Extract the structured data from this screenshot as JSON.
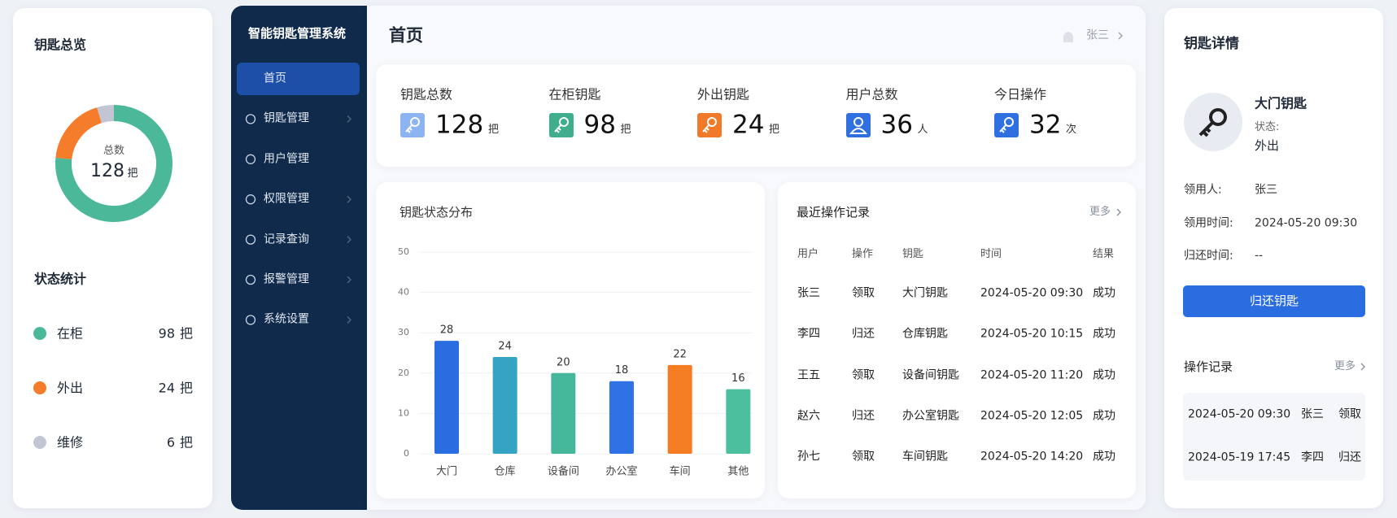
{
  "overview": {
    "title": "钥匙总览",
    "center_label": "总数",
    "total": 128,
    "unit": "把"
  },
  "status": {
    "title": "状态统计",
    "items": [
      {
        "label": "在柜",
        "value": 98,
        "unit": "把",
        "color": "#4cb89a"
      },
      {
        "label": "外出",
        "value": 24,
        "unit": "把",
        "color": "#f47c2a"
      },
      {
        "label": "维修",
        "value": 6,
        "unit": "把",
        "color": "#c2c6d3"
      }
    ]
  },
  "sidebar": {
    "title": "智能钥匙管理系统",
    "menu": [
      {
        "label": "首页",
        "active": true,
        "submenu": false
      },
      {
        "label": "钥匙管理",
        "active": false,
        "submenu": true
      },
      {
        "label": "用户管理",
        "active": false,
        "submenu": false
      },
      {
        "label": "权限管理",
        "active": false,
        "submenu": true
      },
      {
        "label": "记录查询",
        "active": false,
        "submenu": true
      },
      {
        "label": "报警管理",
        "active": false,
        "submenu": true
      },
      {
        "label": "系统设置",
        "active": false,
        "submenu": true
      }
    ]
  },
  "header": {
    "title": "首页",
    "user": "张三"
  },
  "stats": [
    {
      "label": "钥匙总数",
      "value": 128,
      "unit": "把",
      "color": "#8db4f2",
      "icon": "key"
    },
    {
      "label": "在柜钥匙",
      "value": 98,
      "unit": "把",
      "color": "#3fae8c",
      "icon": "key"
    },
    {
      "label": "外出钥匙",
      "value": 24,
      "unit": "把",
      "color": "#f07a2a",
      "icon": "key"
    },
    {
      "label": "用户总数",
      "value": 36,
      "unit": "人",
      "color": "#2f6fe0",
      "icon": "user"
    },
    {
      "label": "今日操作",
      "value": 32,
      "unit": "次",
      "color": "#2f6fe0",
      "icon": "key"
    }
  ],
  "chart_data": {
    "type": "bar",
    "title": "钥匙状态分布",
    "categories": [
      "大门",
      "仓库",
      "设备间",
      "办公室",
      "车间",
      "其他"
    ],
    "values": [
      28,
      24,
      20,
      18,
      22,
      16
    ],
    "colors": [
      "#2a6de0",
      "#34a3c4",
      "#45b89b",
      "#2e72e6",
      "#f47c22",
      "#4cbf9f"
    ],
    "ylim": [
      0,
      50
    ],
    "yticks": [
      0,
      10,
      20,
      30,
      40,
      50
    ],
    "grid": true
  },
  "records": {
    "title": "最近操作记录",
    "more": "更多",
    "columns": [
      "用户",
      "操作",
      "钥匙",
      "时间",
      "结果"
    ],
    "rows": [
      [
        "张三",
        "领取",
        "大门钥匙",
        "2024-05-20 09:30",
        "成功"
      ],
      [
        "李四",
        "归还",
        "仓库钥匙",
        "2024-05-20 10:15",
        "成功"
      ],
      [
        "王五",
        "领取",
        "设备间钥匙",
        "2024-05-20 11:20",
        "成功"
      ],
      [
        "赵六",
        "归还",
        "办公室钥匙",
        "2024-05-20 12:05",
        "成功"
      ],
      [
        "孙七",
        "领取",
        "车间钥匙",
        "2024-05-20 14:20",
        "成功"
      ]
    ]
  },
  "detail": {
    "title": "钥匙详情",
    "key_name": "大门钥匙",
    "status_label": "状态:",
    "status": "外出",
    "fields": [
      {
        "label": "领用人:",
        "value": "张三"
      },
      {
        "label": "领用时间:",
        "value": "2024-05-20 09:30"
      },
      {
        "label": "归还时间:",
        "value": "--"
      }
    ],
    "button": "归还钥匙",
    "log_title": "操作记录",
    "more": "更多",
    "log": [
      [
        "2024-05-20 09:30",
        "张三",
        "领取"
      ],
      [
        "2024-05-19 17:45",
        "李四",
        "归还"
      ]
    ]
  }
}
